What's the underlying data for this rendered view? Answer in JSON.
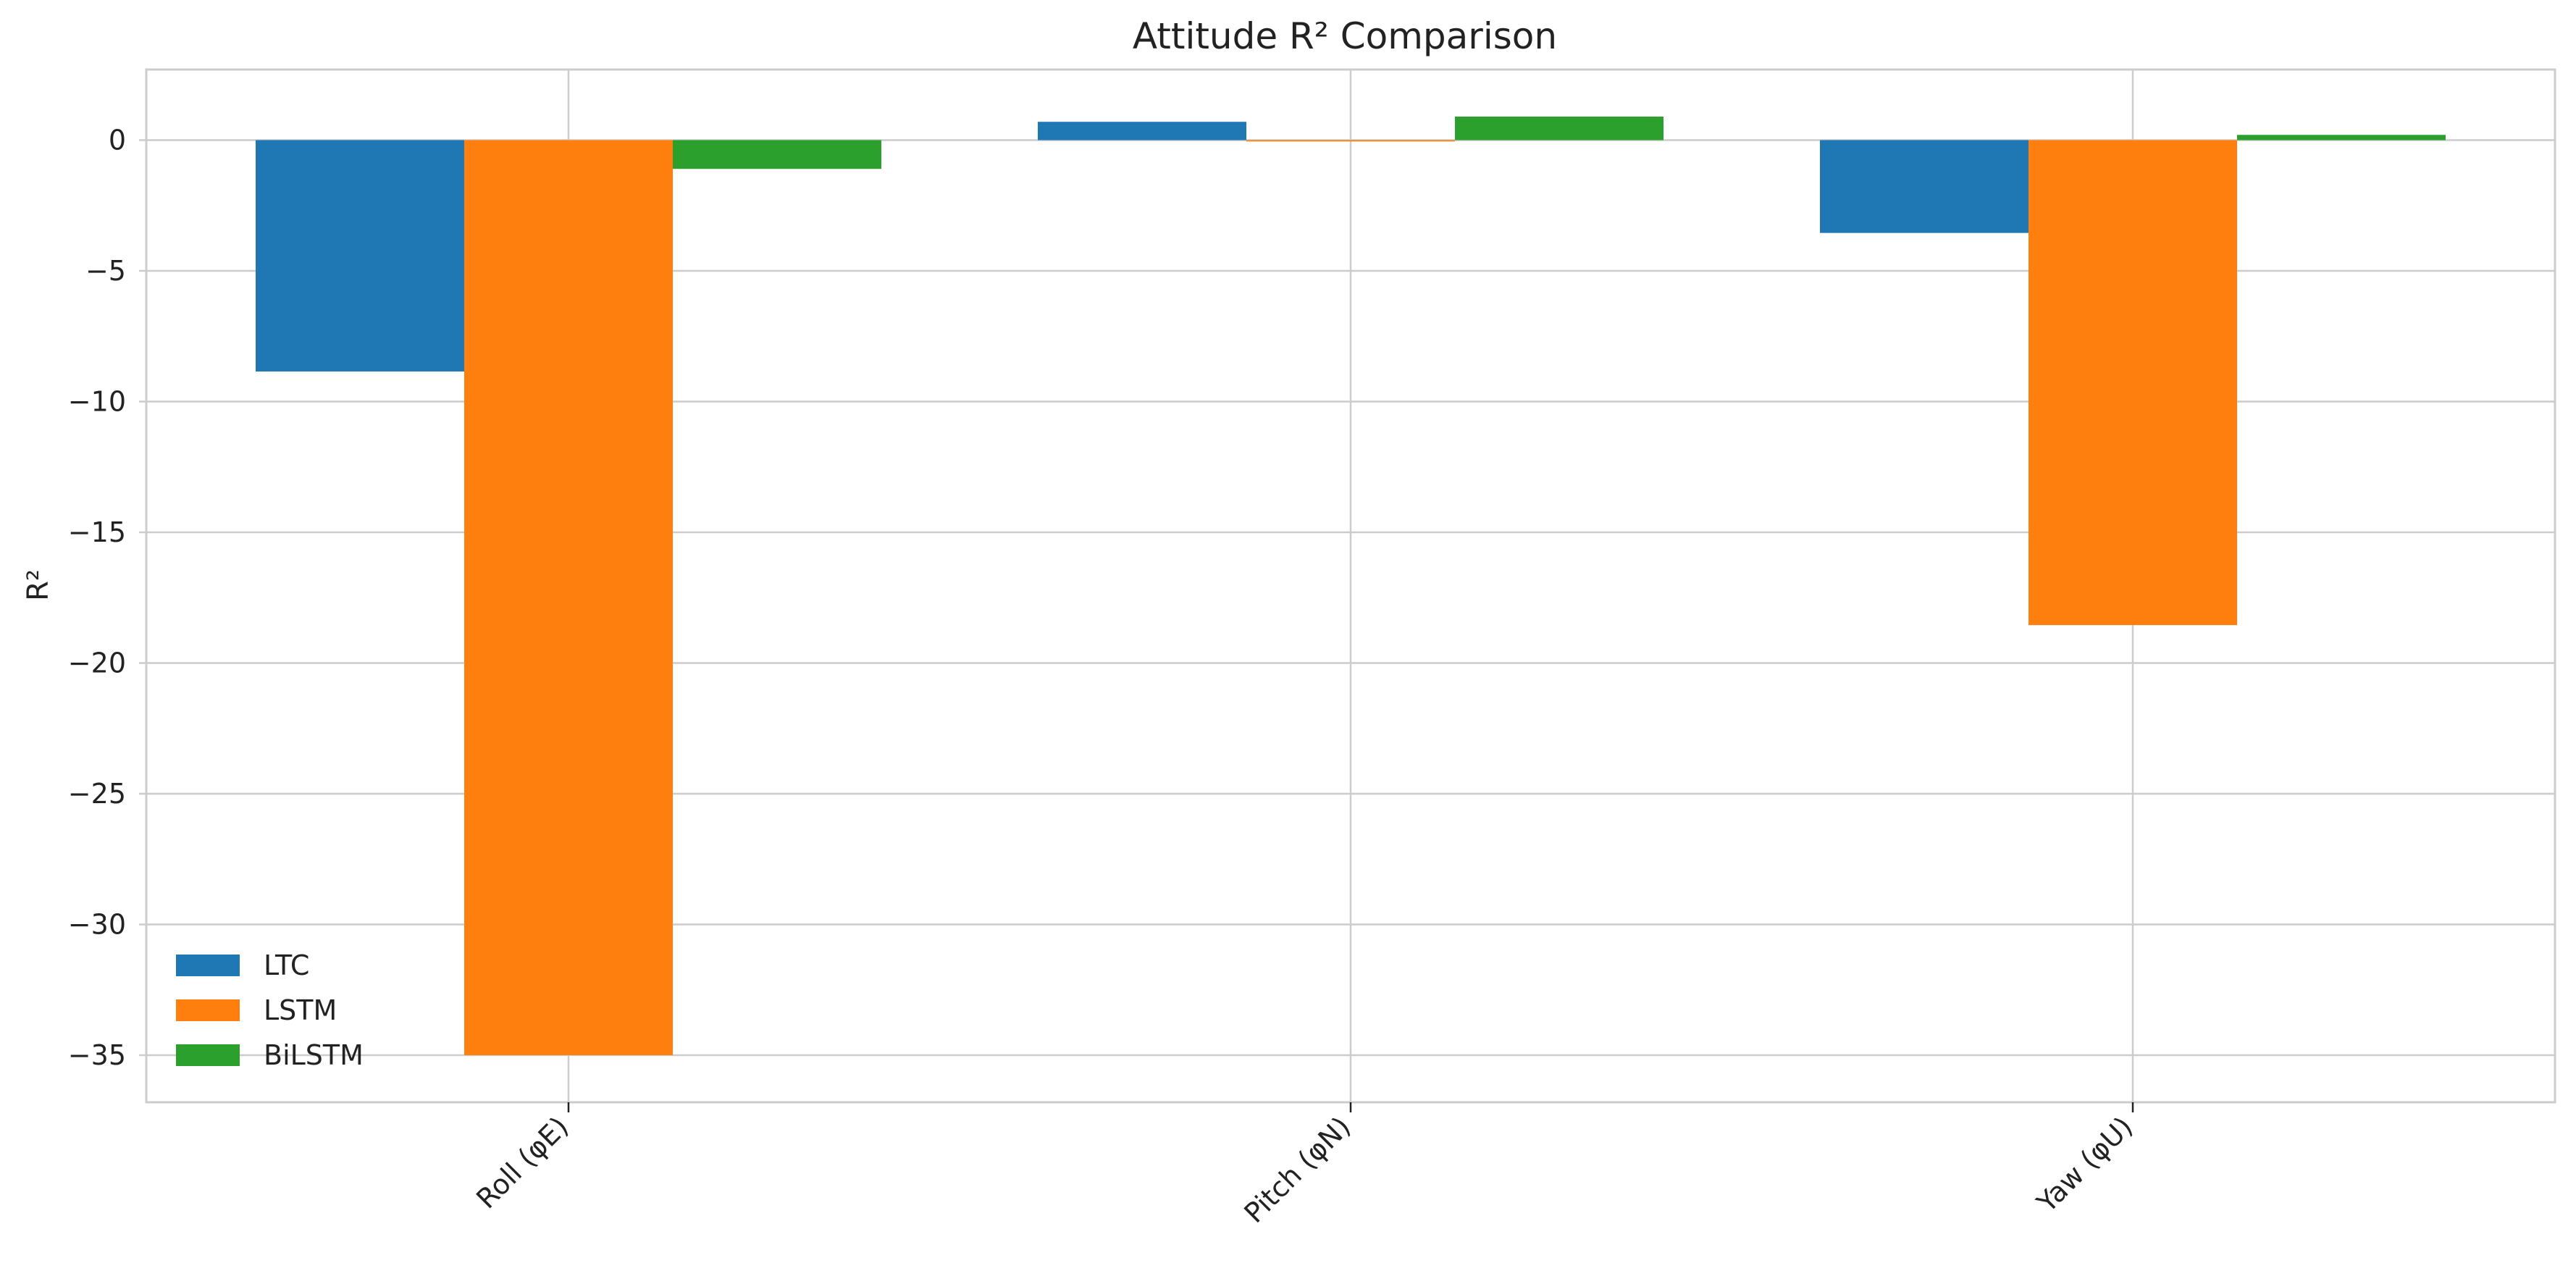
{
  "chart_data": {
    "type": "bar",
    "title": "Attitude R² Comparison",
    "xlabel": "",
    "ylabel": "R²",
    "categories": [
      "Roll (φE)",
      "Pitch (φN)",
      "Yaw (φU)"
    ],
    "series": [
      {
        "name": "LTC",
        "color": "#1f77b4",
        "values": [
          -8.85,
          0.7,
          -3.55
        ]
      },
      {
        "name": "LSTM",
        "color": "#ff7f0e",
        "values": [
          -35.0,
          -0.05,
          -18.55
        ]
      },
      {
        "name": "BiLSTM",
        "color": "#2ca02c",
        "values": [
          -1.1,
          0.9,
          0.2
        ]
      }
    ],
    "ylim": [
      -36.8,
      2.7
    ],
    "yticks": [
      0,
      -5,
      -10,
      -15,
      -20,
      -25,
      -30,
      -35
    ],
    "ytick_labels": [
      "0",
      "−5",
      "−10",
      "−15",
      "−20",
      "−25",
      "−30",
      "−35"
    ],
    "grid": true,
    "legend_position": "lower-left"
  }
}
